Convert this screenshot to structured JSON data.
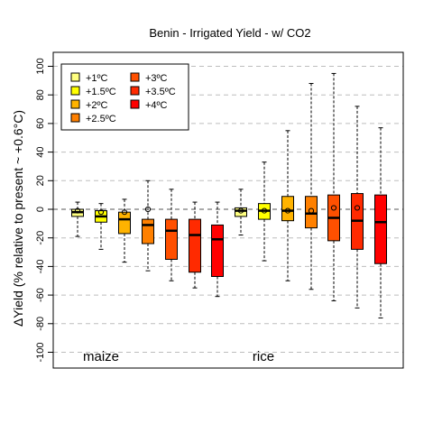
{
  "chart_data": {
    "type": "boxplot",
    "title": "Benin - Irrigated Yield - w/ CO2",
    "ylabel": "ΔYield (% relative to present ~ +0.6°C)",
    "ylim": [
      -105,
      105
    ],
    "yticks": [
      -100,
      -80,
      -60,
      -40,
      -20,
      0,
      20,
      40,
      60,
      80,
      100
    ],
    "ytick_labels": [
      "-100",
      "-80",
      "-60",
      "-40",
      "-20",
      "0",
      "20",
      "40",
      "60",
      "80",
      "100"
    ],
    "grid": "horizontal dashed",
    "legend_position": "top-left",
    "scenarios": [
      {
        "name": "+1ºC",
        "color": "#FFFF80"
      },
      {
        "name": "+1.5ºC",
        "color": "#FFFF00"
      },
      {
        "name": "+2ºC",
        "color": "#FFB300"
      },
      {
        "name": "+2.5ºC",
        "color": "#FF8000"
      },
      {
        "name": "+3ºC",
        "color": "#FF5000"
      },
      {
        "name": "+3.5ºC",
        "color": "#FF2A00"
      },
      {
        "name": "+4ºC",
        "color": "#FF0000"
      }
    ],
    "groups": [
      {
        "label": "maize",
        "boxes": [
          {
            "whisker_low": -19,
            "q1": -5,
            "median": -2,
            "q3": 0,
            "whisker_high": 5,
            "mean": -1
          },
          {
            "whisker_low": -28,
            "q1": -9,
            "median": -5,
            "q3": -1,
            "whisker_high": 4,
            "mean": -2
          },
          {
            "whisker_low": -37,
            "q1": -17,
            "median": -7,
            "q3": -2,
            "whisker_high": 7,
            "mean": -2
          },
          {
            "whisker_low": -43,
            "q1": -24,
            "median": -11,
            "q3": -7,
            "whisker_high": 20,
            "mean": 0
          },
          {
            "whisker_low": -50,
            "q1": -35,
            "median": -15,
            "q3": -7,
            "whisker_high": 14,
            "mean": null
          },
          {
            "whisker_low": -55,
            "q1": -44,
            "median": -18,
            "q3": -7,
            "whisker_high": 5,
            "mean": null
          },
          {
            "whisker_low": -61,
            "q1": -47,
            "median": -21,
            "q3": -11,
            "whisker_high": 5,
            "mean": null
          }
        ]
      },
      {
        "label": "rice",
        "boxes": [
          {
            "whisker_low": -18,
            "q1": -5,
            "median": -1,
            "q3": 1,
            "whisker_high": 14,
            "mean": -1
          },
          {
            "whisker_low": -36,
            "q1": -7,
            "median": -1,
            "q3": 4,
            "whisker_high": 33,
            "mean": -1
          },
          {
            "whisker_low": -50,
            "q1": -8,
            "median": -1,
            "q3": 9,
            "whisker_high": 55,
            "mean": -1
          },
          {
            "whisker_low": -56,
            "q1": -13,
            "median": -3,
            "q3": 9,
            "whisker_high": 88,
            "mean": -1
          },
          {
            "whisker_low": -64,
            "q1": -22,
            "median": -6,
            "q3": 10,
            "whisker_high": 95,
            "mean": 1
          },
          {
            "whisker_low": -69,
            "q1": -28,
            "median": -8,
            "q3": 11,
            "whisker_high": 72,
            "mean": 1
          },
          {
            "whisker_low": -76,
            "q1": -38,
            "median": -9,
            "q3": 10,
            "whisker_high": 57,
            "mean": null
          }
        ]
      }
    ]
  }
}
